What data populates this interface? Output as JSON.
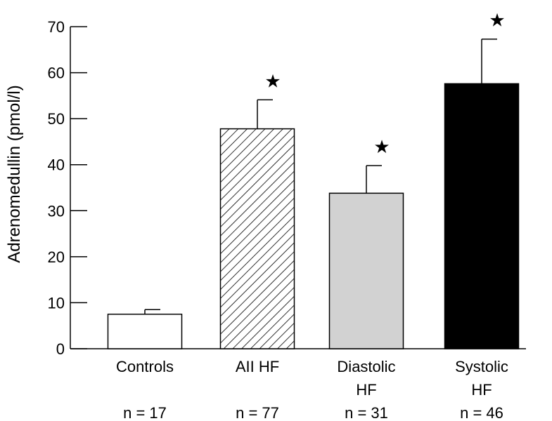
{
  "chart_data": {
    "type": "bar",
    "title": "",
    "xlabel": "",
    "ylabel": "Adrenomedullin (pmol/l)",
    "ylim": [
      0,
      70
    ],
    "yticks": [
      0,
      10,
      20,
      30,
      40,
      50,
      60,
      70
    ],
    "grid": false,
    "legend": "none",
    "significance_marker": "★",
    "bars": [
      {
        "lines": [
          "Controls"
        ],
        "n_label": "n = 17",
        "value": 7.5,
        "error": 1.0,
        "significant": false,
        "fill": "white"
      },
      {
        "lines": [
          "AII HF"
        ],
        "n_label": "n = 77",
        "value": 47.8,
        "error": 6.3,
        "significant": true,
        "fill": "hatch"
      },
      {
        "lines": [
          "Diastolic",
          "HF"
        ],
        "n_label": "n = 31",
        "value": 33.8,
        "error": 6.0,
        "significant": true,
        "fill": "#d2d2d2"
      },
      {
        "lines": [
          "Systolic",
          "HF"
        ],
        "n_label": "n = 46",
        "value": 57.6,
        "error": 9.7,
        "significant": true,
        "fill": "#000000"
      }
    ]
  }
}
